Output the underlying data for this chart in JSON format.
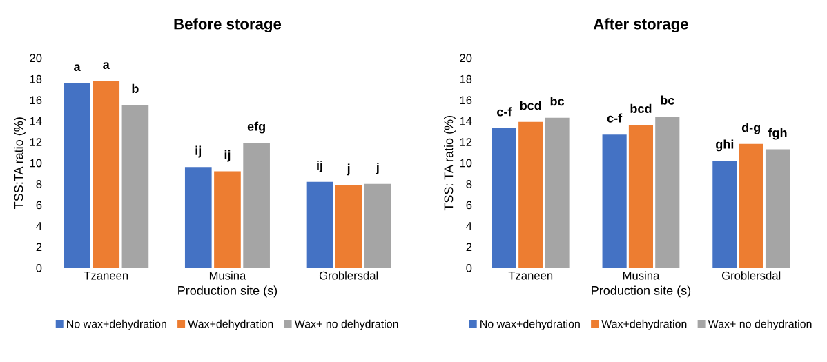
{
  "chart_data": [
    {
      "type": "bar",
      "title": "Before storage",
      "xlabel": "Production site (s)",
      "ylabel": "TSS:TA ratio (%)",
      "categories": [
        "Tzaneen",
        "Musina",
        "Groblersdal"
      ],
      "ylim": [
        0,
        20
      ],
      "yticks": [
        0,
        2,
        4,
        6,
        8,
        10,
        12,
        14,
        16,
        18,
        20
      ],
      "grid": false,
      "legend": "bottom",
      "series": [
        {
          "name": "No wax+dehydration",
          "color": "#4472c4",
          "values": [
            17.6,
            9.6,
            8.2
          ],
          "value_labels": [
            "a",
            "ij",
            "ij"
          ]
        },
        {
          "name": "Wax+dehydration",
          "color": "#ed7d31",
          "values": [
            17.8,
            9.2,
            7.9
          ],
          "value_labels": [
            "a",
            "ij",
            "j"
          ]
        },
        {
          "name": "Wax+ no dehydration",
          "color": "#a5a5a5",
          "values": [
            15.5,
            11.9,
            8.0
          ],
          "value_labels": [
            "b",
            "efg",
            "j"
          ]
        }
      ]
    },
    {
      "type": "bar",
      "title": "After storage",
      "xlabel": "Production site (s)",
      "ylabel": "TSS: TA ratio (%)",
      "categories": [
        "Tzaneen",
        "Musina",
        "Groblersdal"
      ],
      "ylim": [
        0,
        20
      ],
      "yticks": [
        0,
        2,
        4,
        6,
        8,
        10,
        12,
        14,
        16,
        18,
        20
      ],
      "grid": false,
      "legend": "bottom",
      "series": [
        {
          "name": "No wax+dehydration",
          "color": "#4472c4",
          "values": [
            13.3,
            12.7,
            10.2
          ],
          "value_labels": [
            "c-f",
            "c-f",
            "ghi"
          ]
        },
        {
          "name": "Wax+dehydration",
          "color": "#ed7d31",
          "values": [
            13.9,
            13.6,
            11.8
          ],
          "value_labels": [
            "bcd",
            "bcd",
            "d-g"
          ]
        },
        {
          "name": "Wax+ no dehydration",
          "color": "#a5a5a5",
          "values": [
            14.3,
            14.4,
            11.3
          ],
          "value_labels": [
            "bc",
            "bc",
            "fgh"
          ]
        }
      ]
    }
  ]
}
